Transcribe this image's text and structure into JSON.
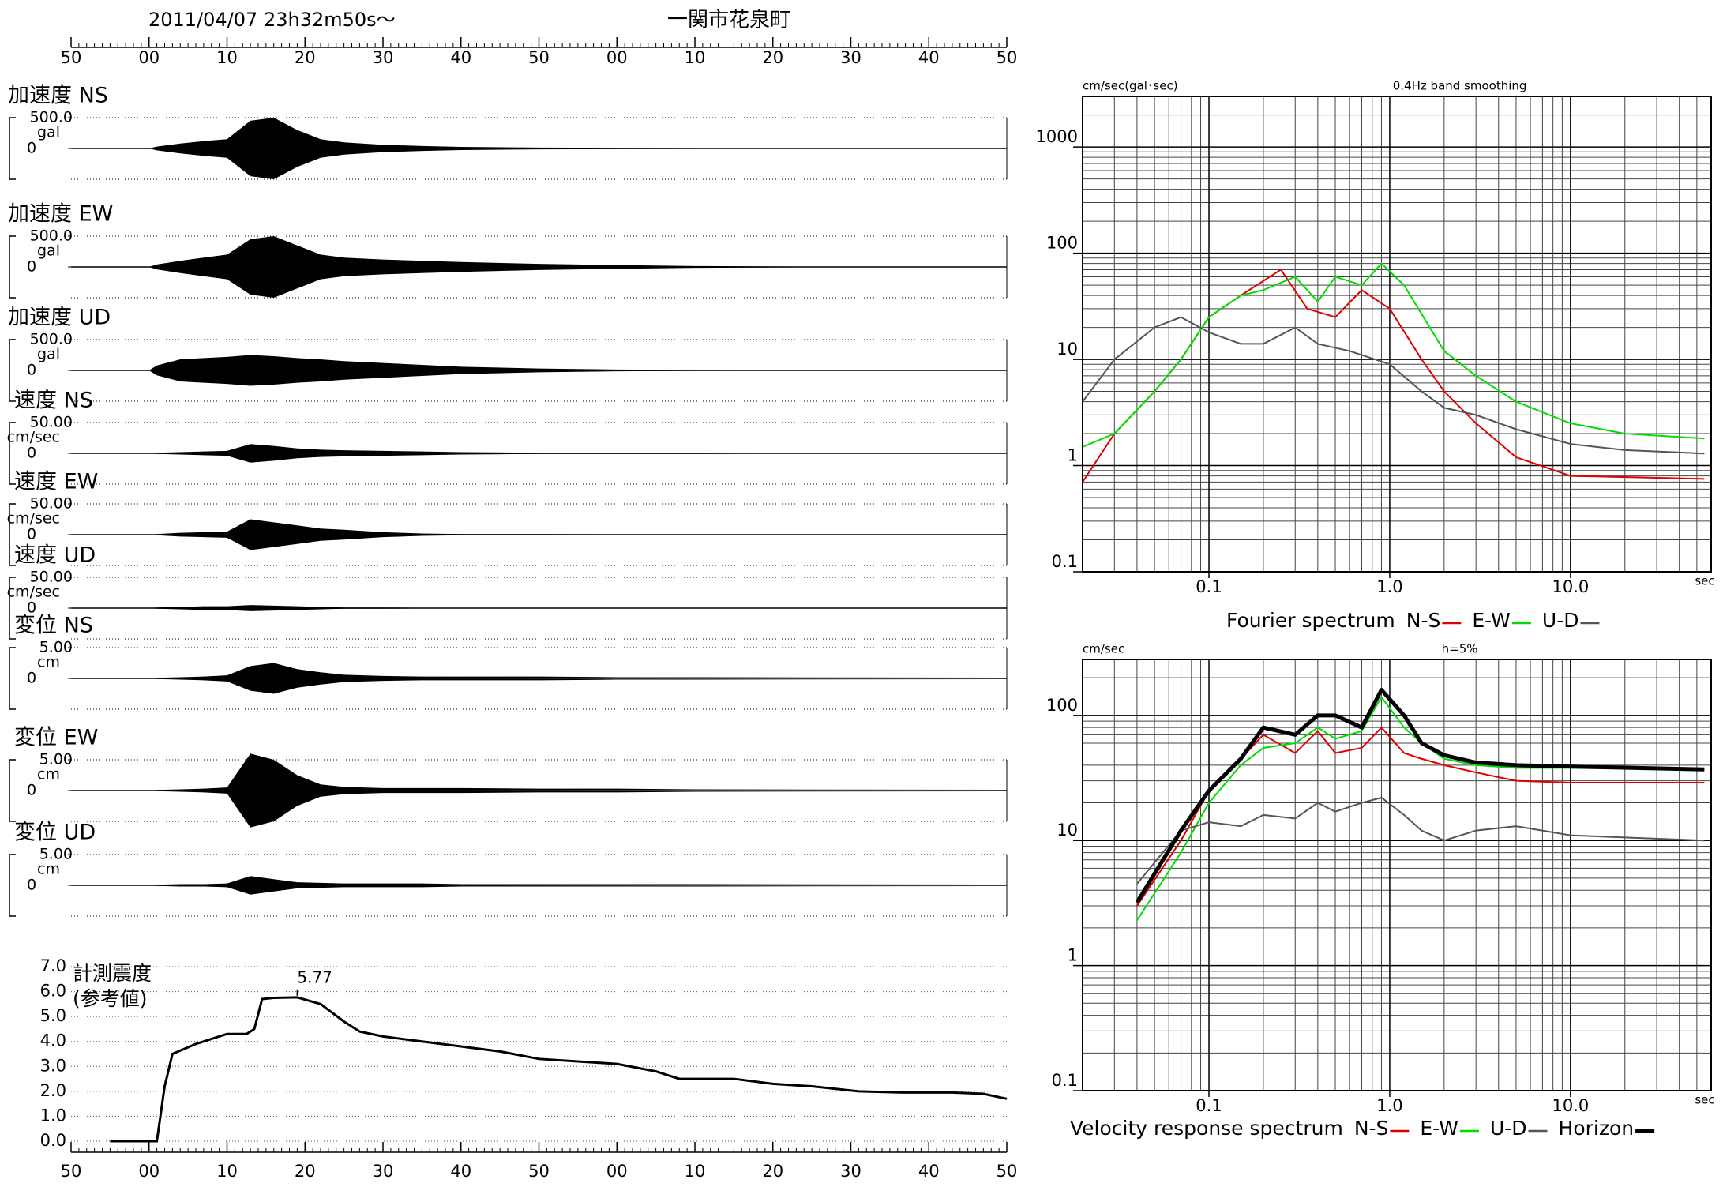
{
  "chart_data": [
    {
      "type": "waveform",
      "title": "2011/04/07  23h32m50s〜",
      "subtitle": "一関市花泉町",
      "xlim": [
        0,
        120
      ],
      "xticks": [
        {
          "value": 0,
          "label": "50"
        },
        {
          "value": 10,
          "label": "00"
        },
        {
          "value": 20,
          "label": "10"
        },
        {
          "value": 30,
          "label": "20"
        },
        {
          "value": 40,
          "label": "30"
        },
        {
          "value": 50,
          "label": "40"
        },
        {
          "value": 60,
          "label": "50"
        },
        {
          "value": 70,
          "label": "00"
        },
        {
          "value": 80,
          "label": "10"
        },
        {
          "value": 90,
          "label": "20"
        },
        {
          "value": 100,
          "label": "30"
        },
        {
          "value": 110,
          "label": "40"
        },
        {
          "value": 120,
          "label": "50"
        }
      ],
      "x": [
        10,
        11,
        14,
        17,
        20,
        23,
        26,
        29,
        32,
        35,
        40,
        45,
        50,
        60,
        70,
        80,
        90,
        100,
        110,
        120
      ],
      "channels": [
        {
          "name": "加速度 NS",
          "unit": "gal",
          "ylim": [
            -500,
            500
          ],
          "yticks": [
            0,
            {
              "value": 500,
              "label": "500.0"
            }
          ],
          "values": [
            0,
            30,
            80,
            120,
            150,
            450,
            500,
            300,
            150,
            100,
            60,
            40,
            25,
            15,
            10,
            6,
            4,
            3,
            2,
            2
          ]
        },
        {
          "name": "加速度 EW",
          "unit": "gal",
          "ylim": [
            -500,
            500
          ],
          "yticks": [
            0,
            {
              "value": 500,
              "label": "500.0"
            }
          ],
          "values": [
            0,
            40,
            100,
            150,
            200,
            450,
            500,
            350,
            200,
            150,
            120,
            100,
            80,
            50,
            30,
            15,
            8,
            5,
            3,
            2
          ]
        },
        {
          "name": "加速度 UD",
          "unit": "gal",
          "ylim": [
            -500,
            500
          ],
          "yticks": [
            0,
            {
              "value": 500,
              "label": "500.0"
            }
          ],
          "values": [
            0,
            80,
            180,
            200,
            220,
            250,
            230,
            200,
            180,
            150,
            120,
            90,
            60,
            30,
            15,
            8,
            5,
            3,
            2,
            2
          ]
        },
        {
          "name": "速度 NS",
          "unit": "cm/sec",
          "ylim": [
            -50,
            50
          ],
          "yticks": [
            0,
            {
              "value": 50,
              "label": "50.00"
            }
          ],
          "values": [
            0,
            1,
            2,
            3,
            4,
            15,
            12,
            8,
            6,
            5,
            4,
            3,
            2,
            1,
            1,
            1,
            0.5,
            0.5,
            0.5,
            0.5
          ]
        },
        {
          "name": "速度 EW",
          "unit": "cm/sec",
          "ylim": [
            -50,
            50
          ],
          "yticks": [
            0,
            {
              "value": 50,
              "label": "50.00"
            }
          ],
          "values": [
            0,
            1,
            3,
            4,
            5,
            25,
            20,
            15,
            10,
            8,
            4,
            2,
            1,
            1,
            0.5,
            0.5,
            0.5,
            0.5,
            0.5,
            0.5
          ]
        },
        {
          "name": "速度 UD",
          "unit": "cm/sec",
          "ylim": [
            -50,
            50
          ],
          "yticks": [
            0,
            {
              "value": 50,
              "label": "50.00"
            }
          ],
          "values": [
            0,
            1,
            2,
            3,
            3,
            5,
            4,
            3,
            2,
            1,
            1,
            0.5,
            0.5,
            0.5,
            0.5,
            0.3,
            0.3,
            0.3,
            0.3,
            0.3
          ]
        },
        {
          "name": "変位 NS",
          "unit": "cm",
          "ylim": [
            -5,
            5
          ],
          "yticks": [
            0,
            {
              "value": 5,
              "label": "5.00"
            }
          ],
          "values": [
            0,
            0.1,
            0.2,
            0.3,
            0.5,
            2,
            2.5,
            1.5,
            1,
            0.6,
            0.4,
            0.3,
            0.3,
            0.3,
            0.2,
            0.2,
            0.2,
            0.2,
            0.2,
            0.2
          ]
        },
        {
          "name": "変位 EW",
          "unit": "cm",
          "ylim": [
            -5,
            5
          ],
          "yticks": [
            0,
            {
              "value": 5,
              "label": "5.00"
            }
          ],
          "values": [
            0,
            0.1,
            0.2,
            0.3,
            0.5,
            6,
            5,
            2.5,
            1,
            0.6,
            0.4,
            0.4,
            0.4,
            0.3,
            0.3,
            0.2,
            0.2,
            0.2,
            0.2,
            0.2
          ]
        },
        {
          "name": "変位 UD",
          "unit": "cm",
          "ylim": [
            -5,
            5
          ],
          "yticks": [
            0,
            {
              "value": 5,
              "label": "5.00"
            }
          ],
          "values": [
            0,
            0.1,
            0.2,
            0.2,
            0.3,
            1.5,
            1,
            0.5,
            0.4,
            0.3,
            0.3,
            0.3,
            0.2,
            0.2,
            0.2,
            0.2,
            0.2,
            0.2,
            0.2,
            0.2
          ]
        }
      ]
    },
    {
      "type": "line",
      "title": "計測震度",
      "subtitle": "(参考値)",
      "color": "#000000",
      "grid": true,
      "xlim": [
        0,
        120
      ],
      "xticks": [
        {
          "value": 0,
          "label": "50"
        },
        {
          "value": 10,
          "label": "00"
        },
        {
          "value": 20,
          "label": "10"
        },
        {
          "value": 30,
          "label": "20"
        },
        {
          "value": 40,
          "label": "30"
        },
        {
          "value": 50,
          "label": "40"
        },
        {
          "value": 60,
          "label": "50"
        },
        {
          "value": 70,
          "label": "00"
        },
        {
          "value": 80,
          "label": "10"
        },
        {
          "value": 90,
          "label": "20"
        },
        {
          "value": 100,
          "label": "30"
        },
        {
          "value": 110,
          "label": "40"
        },
        {
          "value": 120,
          "label": "50"
        }
      ],
      "ylim": [
        0,
        7
      ],
      "yticks": [
        {
          "value": 0,
          "label": "0.0"
        },
        {
          "value": 1,
          "label": "1.0"
        },
        {
          "value": 2,
          "label": "2.0"
        },
        {
          "value": 3,
          "label": "3.0"
        },
        {
          "value": 4,
          "label": "4.0"
        },
        {
          "value": 5,
          "label": "5.0"
        },
        {
          "value": 6,
          "label": "6.0"
        },
        {
          "value": 7,
          "label": "7.0"
        }
      ],
      "x": [
        5,
        10,
        11,
        12,
        13,
        16,
        20,
        22.5,
        23.5,
        24.5,
        26,
        29,
        32,
        35,
        37,
        40,
        45,
        50,
        55,
        60,
        65,
        70,
        75,
        78,
        85,
        90,
        95,
        101,
        107,
        113,
        117,
        120
      ],
      "values": [
        0,
        0,
        0,
        2.2,
        3.5,
        3.9,
        4.3,
        4.3,
        4.5,
        5.7,
        5.75,
        5.77,
        5.5,
        4.8,
        4.4,
        4.2,
        4.0,
        3.8,
        3.6,
        3.3,
        3.2,
        3.1,
        2.8,
        2.5,
        2.5,
        2.3,
        2.2,
        2.0,
        1.95,
        1.95,
        1.9,
        1.7
      ],
      "peak_x": 29,
      "peak_value": 5.77
    },
    {
      "type": "line",
      "log_scale": true,
      "grid": true,
      "ylabel": "cm/sec(gal･sec)",
      "subtitle": "0.4Hz band smoothing",
      "xlabel": "sec",
      "legend_title": "Fourier spectrum",
      "xlim": [
        0.02,
        60
      ],
      "xticks": [
        0.1,
        {
          "value": 1,
          "label": "1.0"
        },
        {
          "value": 10,
          "label": "10.0"
        }
      ],
      "ylim": [
        0.1,
        3000
      ],
      "yticks": [
        0.1,
        1,
        10,
        100,
        1000
      ],
      "series": [
        {
          "name": "N-S",
          "color": "#e00000",
          "x": [
            0.02,
            0.03,
            0.05,
            0.07,
            0.1,
            0.15,
            0.25,
            0.35,
            0.5,
            0.7,
            1,
            1.5,
            2,
            3,
            5,
            10,
            55
          ],
          "values": [
            0.7,
            2,
            5,
            10,
            25,
            40,
            70,
            30,
            25,
            45,
            30,
            10,
            5,
            2.5,
            1.2,
            0.8,
            0.75
          ]
        },
        {
          "name": "E-W",
          "color": "#00dd00",
          "x": [
            0.02,
            0.03,
            0.05,
            0.07,
            0.1,
            0.15,
            0.2,
            0.3,
            0.4,
            0.5,
            0.7,
            0.9,
            1.2,
            2,
            3,
            5,
            10,
            20,
            55
          ],
          "values": [
            1.5,
            2,
            5,
            10,
            25,
            40,
            45,
            60,
            35,
            60,
            50,
            80,
            50,
            12,
            7,
            4,
            2.5,
            2,
            1.8
          ]
        },
        {
          "name": "U-D",
          "color": "#555555",
          "x": [
            0.02,
            0.03,
            0.05,
            0.07,
            0.1,
            0.15,
            0.2,
            0.3,
            0.4,
            0.6,
            1,
            1.5,
            2,
            3,
            5,
            10,
            20,
            55
          ],
          "values": [
            4,
            10,
            20,
            25,
            18,
            14,
            14,
            20,
            14,
            12,
            9,
            5,
            3.5,
            3,
            2.2,
            1.6,
            1.4,
            1.3
          ]
        }
      ]
    },
    {
      "type": "line",
      "log_scale": true,
      "grid": true,
      "ylabel": "cm/sec",
      "subtitle": "h=5%",
      "xlabel": "sec",
      "legend_title": "Velocity response spectrum",
      "xlim": [
        0.02,
        60
      ],
      "xticks": [
        0.1,
        {
          "value": 1,
          "label": "1.0"
        },
        {
          "value": 10,
          "label": "10.0"
        }
      ],
      "ylim": [
        0.1,
        280
      ],
      "yticks": [
        0.1,
        1,
        10,
        100
      ],
      "x": [
        0.04,
        0.07,
        0.1,
        0.15,
        0.2,
        0.3,
        0.4,
        0.5,
        0.7,
        0.9,
        1.2,
        1.5,
        2,
        3,
        5,
        10,
        55
      ],
      "series": [
        {
          "name": "N-S",
          "color": "#e00000",
          "values": [
            3,
            10,
            25,
            45,
            70,
            50,
            75,
            50,
            55,
            80,
            50,
            45,
            40,
            35,
            30,
            29,
            29
          ]
        },
        {
          "name": "E-W",
          "color": "#00dd00",
          "values": [
            2.3,
            8,
            20,
            40,
            55,
            60,
            80,
            65,
            75,
            140,
            80,
            60,
            45,
            40,
            38,
            38,
            37
          ]
        },
        {
          "name": "U-D",
          "color": "#555555",
          "values": [
            4.5,
            12,
            14,
            13,
            16,
            15,
            20,
            17,
            20,
            22,
            16,
            12,
            10,
            12,
            13,
            11,
            10
          ]
        },
        {
          "name": "Horizon",
          "color": "#000000",
          "line_width": 5,
          "values": [
            3.2,
            12,
            25,
            45,
            80,
            70,
            100,
            100,
            80,
            160,
            100,
            60,
            48,
            42,
            40,
            39,
            37
          ]
        }
      ]
    }
  ]
}
